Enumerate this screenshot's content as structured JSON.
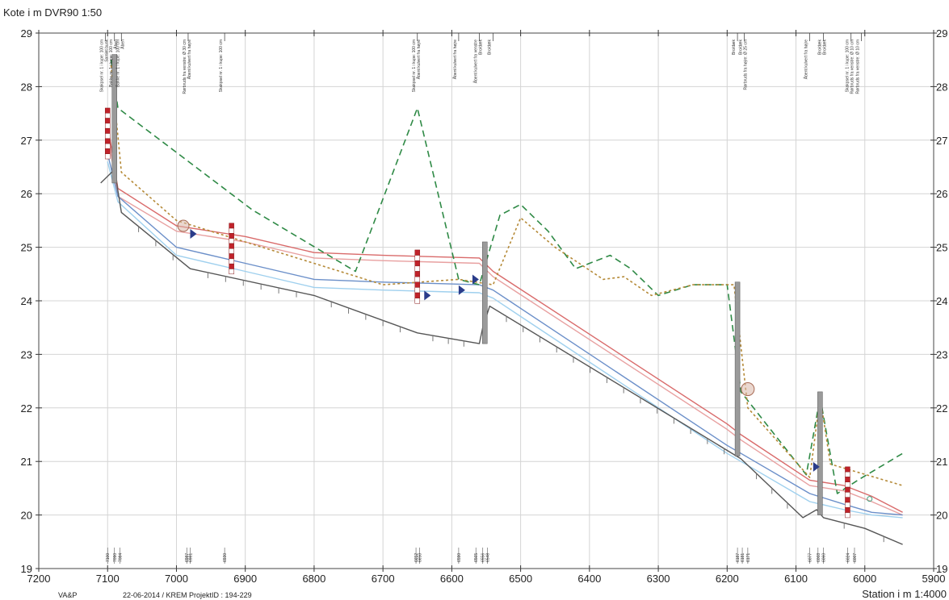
{
  "chart_data": {
    "type": "line",
    "title": "Kote i m DVR90 1:50",
    "xlabel": "Station i m  1:4000",
    "ylabel": "Kote i m DVR90 1:50",
    "xlim": [
      7200,
      5900
    ],
    "ylim": [
      19,
      29
    ],
    "x_ticks": [
      "7200",
      "7100",
      "7000",
      "6900",
      "6800",
      "6700",
      "6600",
      "6500",
      "6400",
      "6300",
      "6200",
      "6100",
      "6000",
      "5900"
    ],
    "y_ticks": [
      "19",
      "20",
      "21",
      "22",
      "23",
      "24",
      "25",
      "26",
      "27",
      "28",
      "29"
    ],
    "grid": true,
    "footer": {
      "left": "VA&P",
      "mid": "22-06-2014 / KREM   ProjektID : 194-229"
    },
    "series": [
      {
        "color": "#d96a6a",
        "points": [
          [
            7100,
            27.3
          ],
          [
            7085,
            26.1
          ],
          [
            7000,
            25.4
          ],
          [
            6900,
            25.2
          ],
          [
            6800,
            24.9
          ],
          [
            6700,
            24.85
          ],
          [
            6560,
            24.8
          ],
          [
            6540,
            24.55
          ],
          [
            6200,
            21.7
          ],
          [
            6180,
            21.5
          ],
          [
            6080,
            20.65
          ],
          [
            6030,
            20.55
          ],
          [
            5990,
            20.35
          ],
          [
            5945,
            20.05
          ]
        ]
      },
      {
        "color": "#e8a0a0",
        "points": [
          [
            7100,
            27.15
          ],
          [
            7085,
            25.95
          ],
          [
            7000,
            25.3
          ],
          [
            6900,
            25.1
          ],
          [
            6800,
            24.8
          ],
          [
            6700,
            24.75
          ],
          [
            6560,
            24.7
          ],
          [
            6540,
            24.45
          ],
          [
            6200,
            21.6
          ],
          [
            6180,
            21.4
          ],
          [
            6080,
            20.55
          ],
          [
            6030,
            20.45
          ],
          [
            5990,
            20.25
          ],
          [
            5945,
            20.0
          ]
        ]
      },
      {
        "color": "#6b8fc9",
        "points": [
          [
            7100,
            26.75
          ],
          [
            7085,
            25.95
          ],
          [
            7000,
            25.0
          ],
          [
            6900,
            24.7
          ],
          [
            6800,
            24.4
          ],
          [
            6700,
            24.35
          ],
          [
            6560,
            24.3
          ],
          [
            6540,
            24.2
          ],
          [
            6200,
            21.3
          ],
          [
            6180,
            21.15
          ],
          [
            6080,
            20.4
          ],
          [
            6030,
            20.2
          ],
          [
            5990,
            20.05
          ],
          [
            5945,
            20.0
          ]
        ]
      },
      {
        "color": "#9fd0ee",
        "points": [
          [
            7100,
            26.6
          ],
          [
            7085,
            25.85
          ],
          [
            7000,
            24.85
          ],
          [
            6900,
            24.55
          ],
          [
            6800,
            24.25
          ],
          [
            6700,
            24.2
          ],
          [
            6560,
            24.15
          ],
          [
            6540,
            24.05
          ],
          [
            6200,
            21.15
          ],
          [
            6180,
            21.0
          ],
          [
            6080,
            20.25
          ],
          [
            6030,
            20.1
          ],
          [
            5990,
            20.0
          ],
          [
            5945,
            19.95
          ]
        ]
      },
      {
        "color": "#555555",
        "points": [
          [
            7110,
            26.2
          ],
          [
            7090,
            26.45
          ],
          [
            7080,
            25.65
          ],
          [
            6980,
            24.6
          ],
          [
            6800,
            24.1
          ],
          [
            6650,
            23.4
          ],
          [
            6560,
            23.2
          ],
          [
            6555,
            23.5
          ],
          [
            6545,
            23.9
          ],
          [
            6180,
            21.05
          ],
          [
            6090,
            19.95
          ],
          [
            6070,
            20.1
          ],
          [
            6060,
            19.95
          ],
          [
            6000,
            19.75
          ],
          [
            5945,
            19.45
          ]
        ]
      },
      {
        "color": "#2f8a46",
        "dash": "8 5",
        "points": [
          [
            7095,
            28.5
          ],
          [
            7085,
            27.6
          ],
          [
            6890,
            25.7
          ],
          [
            6740,
            24.55
          ],
          [
            6650,
            27.6
          ],
          [
            6590,
            24.4
          ],
          [
            6560,
            24.3
          ],
          [
            6530,
            25.6
          ],
          [
            6500,
            25.8
          ],
          [
            6460,
            25.3
          ],
          [
            6420,
            24.6
          ],
          [
            6370,
            24.85
          ],
          [
            6340,
            24.6
          ],
          [
            6300,
            24.1
          ],
          [
            6250,
            24.3
          ],
          [
            6200,
            24.3
          ],
          [
            6180,
            22.3
          ],
          [
            6085,
            20.75
          ],
          [
            6065,
            22.2
          ],
          [
            6040,
            20.4
          ],
          [
            6010,
            20.65
          ],
          [
            5945,
            21.15
          ]
        ]
      },
      {
        "color": "#b58a38",
        "dash": "3 3",
        "points": [
          [
            7095,
            28.4
          ],
          [
            7080,
            26.4
          ],
          [
            7000,
            25.5
          ],
          [
            6900,
            25.1
          ],
          [
            6700,
            24.3
          ],
          [
            6590,
            24.4
          ],
          [
            6540,
            24.3
          ],
          [
            6500,
            25.55
          ],
          [
            6450,
            25.0
          ],
          [
            6380,
            24.4
          ],
          [
            6350,
            24.45
          ],
          [
            6310,
            24.1
          ],
          [
            6250,
            24.3
          ],
          [
            6190,
            24.3
          ],
          [
            6170,
            22.0
          ],
          [
            6080,
            20.7
          ],
          [
            6065,
            22.2
          ],
          [
            6050,
            20.95
          ],
          [
            5945,
            20.55
          ]
        ]
      }
    ],
    "callouts": [
      {
        "x": 7103,
        "texts": [
          "Skakpsel nr. 1 i kupe: 100 cm",
          "Samlet bunk"
        ]
      },
      {
        "x": 7090,
        "texts": [
          "Bakke nr. 1 i kupe: 100 cm",
          "Åben"
        ]
      },
      {
        "x": 7080,
        "texts": [
          "Bakke nr. 1 i kupe: 100 cm",
          "Åben"
        ]
      },
      {
        "x": 6983,
        "texts": [
          "Rørbruds fra venstre: Ø 30 cm",
          "Åbent kulvert fra højre"
        ]
      },
      {
        "x": 6930,
        "texts": [
          "Skakpsel nr. 1 i kupe: 100 cm"
        ]
      },
      {
        "x": 6650,
        "texts": [
          "Skakpsel nr. 1 i kupe: 100 cm",
          "Åbent kulvert fra højre"
        ]
      },
      {
        "x": 6590,
        "texts": [
          "Åbent kulvert fra højre"
        ]
      },
      {
        "x": 6560,
        "texts": [
          "Åbent kulvert fra venstre",
          "Bro/dæk"
        ]
      },
      {
        "x": 6540,
        "texts": [
          "Bro/dæk"
        ]
      },
      {
        "x": 6185,
        "texts": [
          "Bro/dæk"
        ]
      },
      {
        "x": 6175,
        "texts": [
          "Bro/dæk",
          "Rørbruds fra højre: Ø 25 cm"
        ]
      },
      {
        "x": 6080,
        "texts": [
          "Åbent kulvert fra højre"
        ]
      },
      {
        "x": 6060,
        "texts": [
          "Bro/dæk",
          "Bro/dæk"
        ]
      },
      {
        "x": 6020,
        "texts": [
          "Skakpsel nr. 1 i kupe: 100 cm",
          "Rørbruds fra venstre: Ø 10 cm"
        ]
      },
      {
        "x": 6005,
        "texts": [
          "Rørbruds fra venstre: Ø 10 cm"
        ]
      }
    ],
    "bottom_labels": [
      {
        "x": 7100,
        "text": "7100"
      },
      {
        "x": 7090,
        "text": "7090"
      },
      {
        "x": 7082,
        "text": "7084"
      },
      {
        "x": 6985,
        "text": "6987"
      },
      {
        "x": 6980,
        "text": "6981"
      },
      {
        "x": 6930,
        "text": "6930"
      },
      {
        "x": 6652,
        "text": "6652"
      },
      {
        "x": 6647,
        "text": "6650"
      },
      {
        "x": 6590,
        "text": "6590"
      },
      {
        "x": 6565,
        "text": "6565"
      },
      {
        "x": 6555,
        "text": "6556"
      },
      {
        "x": 6548,
        "text": "6548"
      },
      {
        "x": 6185,
        "text": "6187"
      },
      {
        "x": 6178,
        "text": "6181"
      },
      {
        "x": 6170,
        "text": "6171"
      },
      {
        "x": 6080,
        "text": "6077"
      },
      {
        "x": 6068,
        "text": "6068"
      },
      {
        "x": 6060,
        "text": "6060"
      },
      {
        "x": 6025,
        "text": "6024"
      },
      {
        "x": 6015,
        "text": "6007"
      }
    ]
  }
}
